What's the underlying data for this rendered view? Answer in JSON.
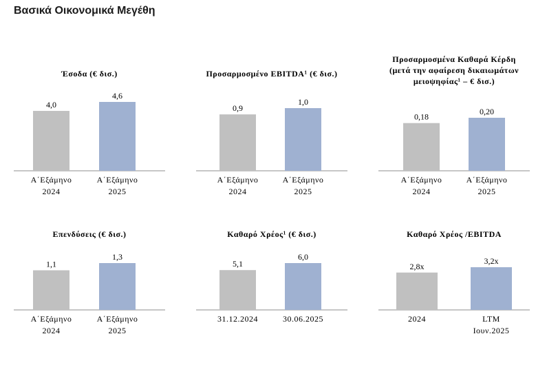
{
  "page_title": "Βασικά Οικονομικά Μεγέθη",
  "colors": {
    "bar_2024": "#c0c0c0",
    "bar_2025": "#9fb1d1",
    "axis": "#8c8c8c"
  },
  "chart_data": [
    {
      "type": "bar",
      "title_lines": [
        "Έσοδα (€ δισ.)"
      ],
      "categories": [
        [
          "Α΄Εξάμηνο",
          "2024"
        ],
        [
          "Α΄Εξάμηνο",
          "2025"
        ]
      ],
      "values": [
        4.0,
        4.6
      ],
      "value_labels": [
        "4,0",
        "4,6"
      ]
    },
    {
      "type": "bar",
      "title_lines": [
        "Προσαρμοσμένο EBITDA¹ (€ δισ.)"
      ],
      "categories": [
        [
          "Α΄Εξάμηνο",
          "2024"
        ],
        [
          "Α΄Εξάμηνο",
          "2025"
        ]
      ],
      "values": [
        0.9,
        1.0
      ],
      "value_labels": [
        "0,9",
        "1,0"
      ]
    },
    {
      "type": "bar",
      "title_lines": [
        "Προσαρμοσμένα Καθαρά Κέρδη",
        "(μετά την αφαίρεση δικαιωμάτων",
        "μειοψηφίας¹ – € δισ.)"
      ],
      "categories": [
        [
          "Α΄Εξάμηνο",
          "2024"
        ],
        [
          "Α΄Εξάμηνο",
          "2025"
        ]
      ],
      "values": [
        0.18,
        0.2
      ],
      "value_labels": [
        "0,18",
        "0,20"
      ]
    },
    {
      "type": "bar",
      "title_lines": [
        "Επενδύσεις (€ δισ.)"
      ],
      "categories": [
        [
          "Α΄Εξάμηνο",
          "2024"
        ],
        [
          "Α΄Εξάμηνο",
          "2025"
        ]
      ],
      "values": [
        1.1,
        1.3
      ],
      "value_labels": [
        "1,1",
        "1,3"
      ]
    },
    {
      "type": "bar",
      "title_lines": [
        "Καθαρό Χρέος¹ (€ δισ.)"
      ],
      "categories": [
        [
          "31.12.2024"
        ],
        [
          "30.06.2025"
        ]
      ],
      "values": [
        5.1,
        6.0
      ],
      "value_labels": [
        "5,1",
        "6,0"
      ]
    },
    {
      "type": "bar",
      "title_lines": [
        "Καθαρό Χρέος /EBITDA"
      ],
      "categories": [
        [
          "2024"
        ],
        [
          "LTM",
          "Ιουν.2025"
        ]
      ],
      "values": [
        2.8,
        3.2
      ],
      "value_labels": [
        "2,8x",
        "3,2x"
      ]
    }
  ]
}
